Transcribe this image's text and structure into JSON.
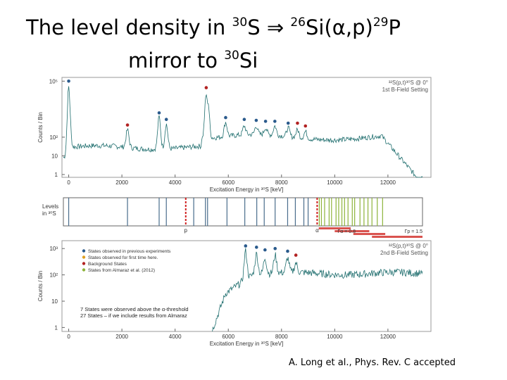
{
  "title": {
    "line1_prefix": "The level density in ",
    "line1_sup_a": "30",
    "line1_mid": "S ",
    "arrow": "⇒",
    "line1_sup_b": "26",
    "line1_reaction": "Si(α,p)",
    "line1_sup_c": "29",
    "line1_end": "P",
    "line2_prefix": "mirror to ",
    "line2_sup": "30",
    "line2_end": "Si"
  },
  "citation": "A. Long et al., Phys. Rev. C accepted",
  "colors": {
    "spectrum": "#1f6e6e",
    "dot_previous": "#2a5a8c",
    "dot_background": "#b22222",
    "level_blue": "#4a6d8c",
    "level_red": "#d02020",
    "level_green": "#8db33a",
    "bar_red": "#d9534f"
  },
  "chart_data": [
    {
      "type": "line",
      "panel": "top spectrum",
      "annotation_line1": "³²S(p,t)³⁰S @ 0°",
      "annotation_line2": "1st B-Field Setting",
      "ylabel": "Counts / Bin",
      "xlabel": "Excitation Energy in ³⁰S [keV]",
      "xlim": [
        -200,
        13300
      ],
      "ylim_log10": [
        -0.15,
        5.2
      ],
      "yscale": "log",
      "x_ticks": [
        0,
        2000,
        4000,
        6000,
        8000,
        10000,
        12000
      ],
      "y_ticks": [
        {
          "label": "10⁵",
          "log": 5
        },
        {
          "label": "10²",
          "log": 2
        },
        {
          "label": "10",
          "log": 1
        },
        {
          "label": "1",
          "log": 0
        }
      ],
      "peaks": [
        {
          "x": 0,
          "logy": 4.7
        },
        {
          "x": 2210,
          "logy": 2.4
        },
        {
          "x": 3400,
          "logy": 3.1
        },
        {
          "x": 3670,
          "logy": 2.7
        },
        {
          "x": 5170,
          "logy": 4.3
        },
        {
          "x": 5230,
          "logy": 3.9
        },
        {
          "x": 5900,
          "logy": 2.8
        },
        {
          "x": 6600,
          "logy": 2.6
        },
        {
          "x": 7050,
          "logy": 2.6
        },
        {
          "x": 7400,
          "logy": 2.5
        },
        {
          "x": 7750,
          "logy": 2.6
        },
        {
          "x": 8250,
          "logy": 2.5
        },
        {
          "x": 8600,
          "logy": 2.4
        },
        {
          "x": 8900,
          "logy": 2.3
        }
      ],
      "markers": [
        {
          "x": 0,
          "logy": 5.0,
          "kind": "previous"
        },
        {
          "x": 2210,
          "logy": 2.65,
          "kind": "background"
        },
        {
          "x": 3400,
          "logy": 3.3,
          "kind": "previous"
        },
        {
          "x": 3670,
          "logy": 2.95,
          "kind": "previous"
        },
        {
          "x": 5170,
          "logy": 4.65,
          "kind": "background"
        },
        {
          "x": 5900,
          "logy": 3.05,
          "kind": "previous"
        },
        {
          "x": 6600,
          "logy": 2.95,
          "kind": "previous"
        },
        {
          "x": 7050,
          "logy": 2.9,
          "kind": "previous"
        },
        {
          "x": 7400,
          "logy": 2.85,
          "kind": "previous"
        },
        {
          "x": 7750,
          "logy": 2.85,
          "kind": "previous"
        },
        {
          "x": 8250,
          "logy": 2.75,
          "kind": "previous"
        },
        {
          "x": 8600,
          "logy": 2.75,
          "kind": "background"
        },
        {
          "x": 8900,
          "logy": 2.6,
          "kind": "background"
        }
      ]
    },
    {
      "type": "table",
      "panel": "level scheme",
      "label_line1": "Levels",
      "label_line2": "in ³⁰S",
      "p_label": "p",
      "alpha_label": "α",
      "gamma_label_a": "Γα = 0.8",
      "gamma_label_b": "Γp = 1.5",
      "xlim": [
        -200,
        13300
      ],
      "levels_blue": [
        0,
        2210,
        3400,
        3670,
        4700,
        5140,
        5220,
        5950,
        6620,
        7070,
        7350,
        7760,
        8230,
        8520,
        8840,
        9000
      ],
      "proton_threshold": 4400,
      "alpha_threshold": 9340,
      "levels_green": [
        9420,
        9500,
        9620,
        9790,
        9880,
        10050,
        10150,
        10270,
        10370,
        10500,
        10660,
        10750,
        10950,
        11100,
        11250,
        11400,
        11600,
        11800
      ],
      "bars": [
        {
          "from": 9400,
          "to": 10600,
          "row": 0
        },
        {
          "from": 10000,
          "to": 11300,
          "row": 1
        },
        {
          "from": 10700,
          "to": 11900,
          "row": 2
        },
        {
          "from": 11400,
          "to": 13300,
          "row": 3
        }
      ]
    },
    {
      "type": "line",
      "panel": "bottom spectrum",
      "annotation_line1": "³²S(p,t)³⁰S @ 0°",
      "annotation_line2": "2nd B-Field Setting",
      "ylabel": "Counts / Bin",
      "xlabel": "Excitation Energy in ³⁰S [keV]",
      "xlim": [
        -200,
        13300
      ],
      "ylim_log10": [
        -0.15,
        3.3
      ],
      "yscale": "log",
      "x_ticks": [
        0,
        2000,
        4000,
        6000,
        8000,
        10000,
        12000
      ],
      "y_ticks": [
        {
          "label": "10³",
          "log": 3
        },
        {
          "label": "10²",
          "log": 2
        },
        {
          "label": "10",
          "log": 1
        },
        {
          "label": "1",
          "log": 0
        }
      ],
      "legend": [
        {
          "label": "States observed in previous experiments",
          "kind": "previous"
        },
        {
          "label": "States observed for first time here.",
          "kind": "first"
        },
        {
          "label": "Background States",
          "kind": "background"
        },
        {
          "label": "States from Almaraz et al. (2012)",
          "kind": "almaraz"
        }
      ],
      "note_line1": "7 States were observed above the α-threshold",
      "note_line2": "27 States – if we include results from Almaraz",
      "peaks": [
        {
          "x": 6650,
          "logy": 2.9
        },
        {
          "x": 7060,
          "logy": 2.8
        },
        {
          "x": 7380,
          "logy": 2.65
        },
        {
          "x": 7760,
          "logy": 2.75
        },
        {
          "x": 8230,
          "logy": 2.65
        },
        {
          "x": 8540,
          "logy": 2.45
        }
      ],
      "markers": [
        {
          "x": 6650,
          "logy": 3.1,
          "kind": "previous"
        },
        {
          "x": 7060,
          "logy": 3.05,
          "kind": "previous"
        },
        {
          "x": 7380,
          "logy": 2.95,
          "kind": "previous"
        },
        {
          "x": 7760,
          "logy": 3.0,
          "kind": "previous"
        },
        {
          "x": 8230,
          "logy": 2.9,
          "kind": "previous"
        },
        {
          "x": 8540,
          "logy": 2.75,
          "kind": "background"
        }
      ]
    }
  ]
}
